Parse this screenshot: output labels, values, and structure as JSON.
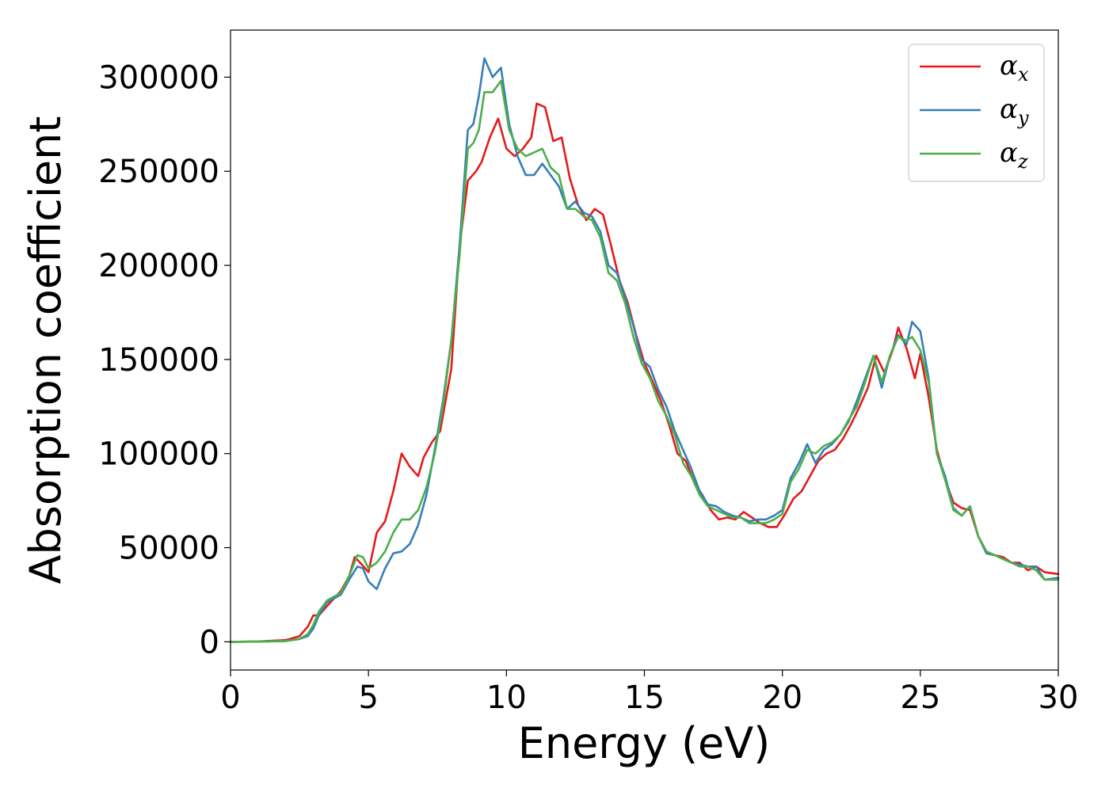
{
  "chart_data": {
    "type": "line",
    "title": "",
    "xlabel": "Energy (eV)",
    "ylabel": "Absorption coefficient",
    "xlim": [
      0,
      30
    ],
    "ylim": [
      -15000,
      325000
    ],
    "xticks": [
      0,
      5,
      10,
      15,
      20,
      25,
      30
    ],
    "yticks": [
      0,
      50000,
      100000,
      150000,
      200000,
      250000,
      300000
    ],
    "xtick_labels": [
      "0",
      "5",
      "10",
      "15",
      "20",
      "25",
      "30"
    ],
    "ytick_labels": [
      "0",
      "50000",
      "100000",
      "150000",
      "200000",
      "250000",
      "300000"
    ],
    "grid": false,
    "legend_position": "top-right",
    "series": [
      {
        "name": "α_x",
        "label_main": "α",
        "label_sub": "x",
        "color": "#e41a1c",
        "x": [
          0,
          1,
          2,
          2.5,
          2.8,
          3.0,
          3.2,
          3.5,
          4.0,
          4.3,
          4.5,
          4.7,
          5.0,
          5.3,
          5.6,
          5.9,
          6.2,
          6.5,
          6.8,
          7.0,
          7.3,
          7.6,
          8.0,
          8.3,
          8.6,
          8.9,
          9.1,
          9.4,
          9.7,
          10.0,
          10.3,
          10.6,
          10.9,
          11.1,
          11.4,
          11.7,
          12.0,
          12.3,
          12.6,
          12.9,
          13.2,
          13.5,
          13.8,
          14.1,
          14.4,
          14.7,
          15.0,
          15.3,
          15.6,
          15.9,
          16.2,
          16.5,
          16.8,
          17.1,
          17.4,
          17.7,
          18.0,
          18.3,
          18.6,
          18.9,
          19.2,
          19.5,
          19.8,
          20.1,
          20.4,
          20.7,
          21.0,
          21.3,
          21.6,
          21.9,
          22.2,
          22.5,
          22.8,
          23.1,
          23.4,
          23.7,
          24.0,
          24.2,
          24.5,
          24.8,
          25.0,
          25.3,
          25.6,
          25.9,
          26.2,
          26.5,
          26.8,
          27.1,
          27.4,
          27.7,
          28.0,
          28.3,
          28.6,
          28.9,
          29.2,
          29.5,
          30
        ],
        "y": [
          0,
          200,
          900,
          3000,
          8000,
          14000,
          14000,
          19000,
          27000,
          35000,
          45000,
          42000,
          37000,
          58000,
          64000,
          80000,
          100000,
          93000,
          88000,
          98000,
          106000,
          112000,
          145000,
          210000,
          245000,
          250000,
          255000,
          268000,
          278000,
          262000,
          258000,
          262000,
          268000,
          286000,
          284000,
          266000,
          268000,
          246000,
          232000,
          224000,
          230000,
          227000,
          210000,
          192000,
          180000,
          163000,
          148000,
          138000,
          128000,
          115000,
          100000,
          96000,
          85000,
          78000,
          70000,
          65000,
          66000,
          65000,
          69000,
          66000,
          63000,
          61000,
          61000,
          68000,
          76000,
          80000,
          88000,
          96000,
          100000,
          102000,
          108000,
          116000,
          125000,
          135000,
          152000,
          143000,
          155000,
          167000,
          156000,
          140000,
          153000,
          130000,
          102000,
          86000,
          74000,
          71000,
          70000,
          56000,
          47000,
          46000,
          45000,
          42000,
          42000,
          38000,
          40000,
          37000,
          36000
        ]
      },
      {
        "name": "α_y",
        "label_main": "α",
        "label_sub": "y",
        "color": "#377eb8",
        "x": [
          0,
          1,
          2,
          2.5,
          2.8,
          3.0,
          3.2,
          3.5,
          4.0,
          4.3,
          4.6,
          4.8,
          5.0,
          5.3,
          5.6,
          5.9,
          6.2,
          6.5,
          6.8,
          7.1,
          7.4,
          7.7,
          8.0,
          8.3,
          8.6,
          8.8,
          9.0,
          9.2,
          9.5,
          9.8,
          10.1,
          10.4,
          10.7,
          11.0,
          11.3,
          11.6,
          11.9,
          12.2,
          12.5,
          12.8,
          13.1,
          13.4,
          13.7,
          14.0,
          14.3,
          14.6,
          14.9,
          15.2,
          15.5,
          15.8,
          16.1,
          16.4,
          16.7,
          17.0,
          17.3,
          17.6,
          17.9,
          18.2,
          18.5,
          18.8,
          19.1,
          19.4,
          19.7,
          20.0,
          20.3,
          20.6,
          20.9,
          21.2,
          21.5,
          21.8,
          22.1,
          22.4,
          22.7,
          23.0,
          23.3,
          23.6,
          23.9,
          24.2,
          24.5,
          24.7,
          25.0,
          25.3,
          25.6,
          25.9,
          26.2,
          26.5,
          26.8,
          27.1,
          27.4,
          27.7,
          28.0,
          28.3,
          28.6,
          28.9,
          29.2,
          29.5,
          30
        ],
        "y": [
          0,
          100,
          400,
          1500,
          3000,
          7000,
          14000,
          21000,
          25000,
          33000,
          40000,
          39000,
          32000,
          28000,
          39000,
          47000,
          48000,
          52000,
          62000,
          78000,
          102000,
          128000,
          160000,
          210000,
          272000,
          275000,
          290000,
          310000,
          300000,
          305000,
          275000,
          258000,
          248000,
          248000,
          254000,
          248000,
          242000,
          230000,
          234000,
          228000,
          226000,
          218000,
          200000,
          196000,
          183000,
          168000,
          150000,
          146000,
          134000,
          125000,
          112000,
          102000,
          92000,
          80000,
          73000,
          72000,
          69000,
          67000,
          66000,
          64000,
          65000,
          65000,
          67000,
          70000,
          87000,
          95000,
          105000,
          95000,
          102000,
          105000,
          110000,
          117000,
          128000,
          140000,
          152000,
          135000,
          152000,
          163000,
          158000,
          170000,
          165000,
          140000,
          100000,
          88000,
          71000,
          67000,
          72000,
          56000,
          47000,
          46000,
          44000,
          42000,
          41000,
          40000,
          40000,
          33000,
          34000
        ]
      },
      {
        "name": "α_z",
        "label_main": "α",
        "label_sub": "z",
        "color": "#4daf4a",
        "x": [
          0,
          1,
          2,
          2.5,
          2.8,
          3.0,
          3.2,
          3.5,
          4.0,
          4.3,
          4.6,
          4.8,
          5.0,
          5.3,
          5.6,
          5.9,
          6.2,
          6.5,
          6.8,
          7.1,
          7.4,
          7.7,
          8.0,
          8.3,
          8.6,
          8.8,
          9.0,
          9.2,
          9.5,
          9.8,
          10.1,
          10.4,
          10.7,
          11.0,
          11.3,
          11.6,
          11.9,
          12.2,
          12.5,
          12.8,
          13.1,
          13.4,
          13.7,
          14.0,
          14.3,
          14.6,
          14.9,
          15.2,
          15.5,
          15.8,
          16.1,
          16.4,
          16.7,
          17.0,
          17.3,
          17.6,
          17.9,
          18.2,
          18.5,
          18.8,
          19.1,
          19.4,
          19.7,
          20.0,
          20.3,
          20.6,
          20.9,
          21.2,
          21.5,
          21.8,
          22.1,
          22.4,
          22.7,
          23.0,
          23.3,
          23.6,
          23.9,
          24.2,
          24.5,
          24.7,
          25.0,
          25.3,
          25.6,
          25.9,
          26.2,
          26.5,
          26.8,
          27.1,
          27.4,
          27.7,
          28.0,
          28.3,
          28.6,
          28.9,
          29.2,
          29.5,
          30
        ],
        "y": [
          0,
          100,
          400,
          1500,
          4000,
          9000,
          16000,
          22000,
          26000,
          35000,
          46000,
          45000,
          39000,
          42000,
          48000,
          58000,
          65000,
          65000,
          70000,
          82000,
          100000,
          125000,
          160000,
          205000,
          262000,
          265000,
          272000,
          292000,
          292000,
          298000,
          272000,
          262000,
          258000,
          260000,
          262000,
          252000,
          248000,
          230000,
          230000,
          226000,
          224000,
          215000,
          196000,
          192000,
          180000,
          162000,
          148000,
          140000,
          128000,
          120000,
          110000,
          95000,
          88000,
          78000,
          72000,
          70000,
          68000,
          66000,
          66000,
          63000,
          63000,
          63000,
          65000,
          68000,
          85000,
          92000,
          102000,
          100000,
          104000,
          106000,
          110000,
          118000,
          125000,
          138000,
          152000,
          138000,
          152000,
          162000,
          160000,
          162000,
          155000,
          138000,
          100000,
          86000,
          70000,
          67000,
          72000,
          56000,
          48000,
          46000,
          44000,
          42000,
          40000,
          40000,
          38000,
          33000,
          33000
        ]
      }
    ]
  }
}
